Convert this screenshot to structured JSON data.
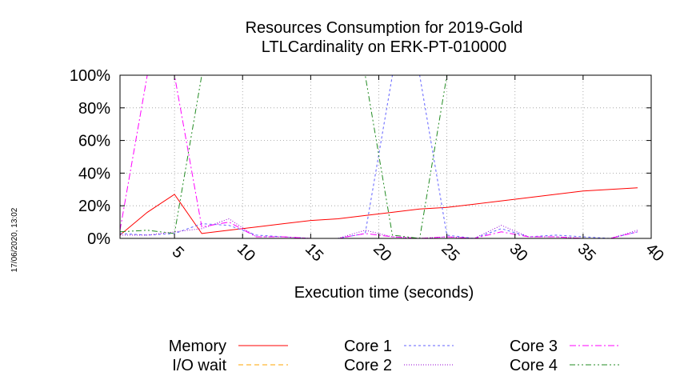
{
  "side_label": "17/06/2020, 13:02",
  "chart_data": {
    "type": "line",
    "title": [
      "Resources Consumption for 2019-Gold",
      "LTLCardinality on ERK-PT-010000"
    ],
    "xlabel": "Execution time (seconds)",
    "ylabel": "",
    "xlim": [
      1,
      40
    ],
    "ylim": [
      0,
      100
    ],
    "x_ticks": [
      5,
      10,
      15,
      20,
      25,
      30,
      35,
      40
    ],
    "y_ticks": [
      0,
      20,
      40,
      60,
      80,
      100
    ],
    "y_tick_labels": [
      "0%",
      "20%",
      "40%",
      "60%",
      "80%",
      "100%"
    ],
    "grid": true,
    "legend_position": "bottom",
    "series": [
      {
        "name": "Memory",
        "color": "#ff0000",
        "dash": "solid",
        "x": [
          1,
          3,
          5,
          7,
          9,
          11,
          13,
          15,
          17,
          19,
          21,
          23,
          25,
          27,
          29,
          31,
          33,
          35,
          37,
          39
        ],
        "y": [
          2,
          16,
          27,
          3,
          5,
          7,
          9,
          11,
          12,
          14,
          16,
          18,
          19,
          21,
          23,
          25,
          27,
          29,
          30,
          31
        ]
      },
      {
        "name": "I/O wait",
        "color": "#ffa500",
        "dash": "dash",
        "x": [
          1,
          3,
          5,
          7,
          9,
          11,
          13,
          15,
          17,
          19,
          21,
          23,
          25,
          27,
          29,
          31,
          33,
          35,
          37,
          39
        ],
        "y": [
          0,
          0,
          0,
          0,
          0,
          0,
          0,
          0,
          0,
          0,
          0,
          0,
          0,
          0,
          0,
          0,
          0,
          0,
          0,
          0
        ]
      },
      {
        "name": "Core 1",
        "color": "#6060ff",
        "dash": "shortdash",
        "x": [
          1,
          3,
          5,
          7,
          9,
          11,
          13,
          15,
          17,
          19,
          21,
          23,
          25,
          27,
          29,
          31,
          33,
          35,
          37,
          39
        ],
        "y": [
          3,
          2,
          3,
          9,
          8,
          2,
          1,
          0,
          0,
          3,
          100,
          100,
          2,
          0,
          6,
          1,
          2,
          1,
          0,
          4
        ]
      },
      {
        "name": "Core 2",
        "color": "#9400d3",
        "dash": "dot",
        "x": [
          1,
          3,
          5,
          7,
          9,
          11,
          13,
          15,
          17,
          19,
          21,
          23,
          25,
          27,
          29,
          31,
          33,
          35,
          37,
          39
        ],
        "y": [
          2,
          2,
          4,
          6,
          12,
          1,
          1,
          0,
          0,
          5,
          1,
          0,
          1,
          0,
          8,
          1,
          1,
          0,
          0,
          5
        ]
      },
      {
        "name": "Core 3",
        "color": "#ff00ff",
        "dash": "dashdot",
        "x": [
          1,
          3,
          5,
          7,
          9,
          11,
          13,
          15,
          17,
          19,
          21,
          23,
          25,
          27,
          29,
          31,
          33,
          35,
          37,
          39
        ],
        "y": [
          5,
          100,
          100,
          7,
          10,
          1,
          1,
          0,
          0,
          3,
          1,
          0,
          1,
          0,
          4,
          1,
          1,
          0,
          0,
          4
        ]
      },
      {
        "name": "Core 4",
        "color": "#228b22",
        "dash": "dashdotdot",
        "x": [
          1,
          3,
          5,
          7,
          9,
          11,
          13,
          15,
          17,
          19,
          21,
          23,
          25,
          27,
          29,
          31,
          33,
          35,
          37,
          39
        ],
        "y": [
          4,
          5,
          3,
          100,
          100,
          100,
          100,
          100,
          100,
          100,
          2,
          0,
          100,
          100,
          100,
          100,
          100,
          100,
          100,
          100
        ]
      }
    ]
  }
}
